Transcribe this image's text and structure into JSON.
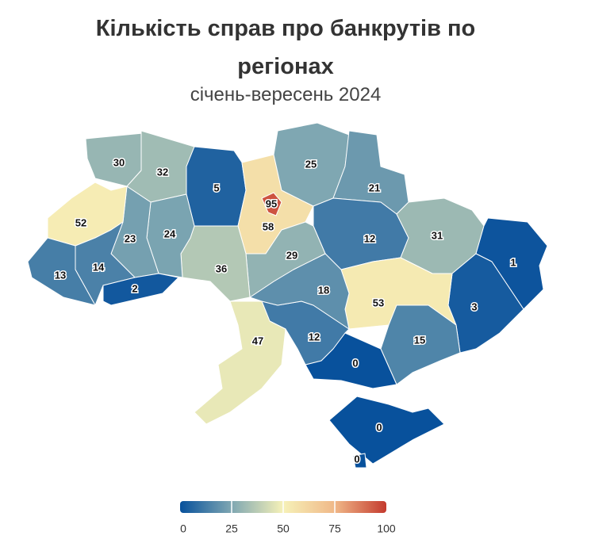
{
  "chart_data": {
    "type": "map",
    "title": "Кількість справ про банкрутів по регіонах",
    "subtitle": "січень-вересень 2024",
    "values": [
      30,
      32,
      5,
      58,
      95,
      25,
      21,
      12,
      31,
      1,
      3,
      53,
      15,
      0,
      0,
      0,
      12,
      47,
      18,
      29,
      36,
      24,
      23,
      52,
      14,
      13,
      2
    ],
    "colors": [
      "#08519c",
      "#7fa7b2",
      "#f6f1b8",
      "#f0b888",
      "#c43a2e"
    ],
    "clim": [
      0,
      100
    ],
    "cticks": [
      0,
      25,
      50,
      75,
      100
    ]
  }
}
